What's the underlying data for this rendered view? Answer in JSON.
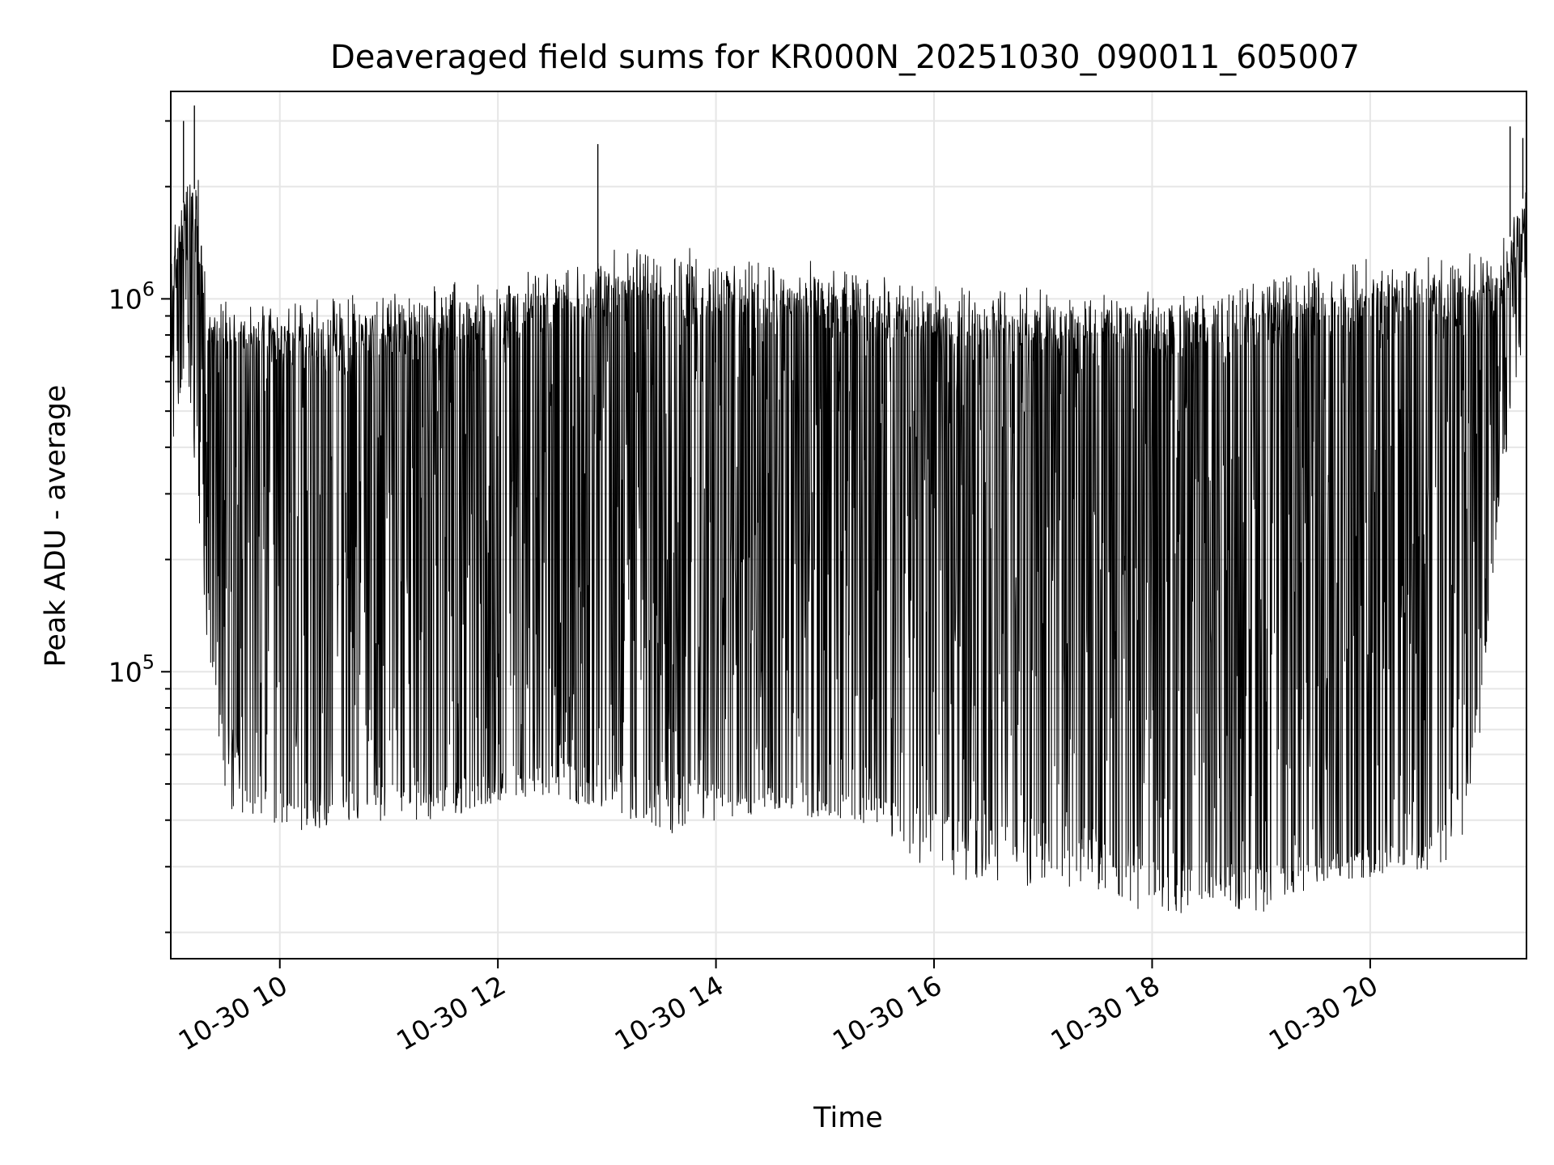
{
  "chart_data": {
    "type": "line",
    "title": "Deaveraged field sums for KR000N_20251030_090011_605007",
    "xlabel": "Time",
    "ylabel": "Peak ADU - average",
    "yscale": "log",
    "ylim": [
      17000,
      3600000
    ],
    "xlim": [
      "2025-10-30 09:00",
      "2025-10-30 21:26"
    ],
    "grid": true,
    "line_color": "#000000",
    "x_ticks": [
      {
        "value": "2025-10-30 10:00",
        "label": "10-30 10"
      },
      {
        "value": "2025-10-30 12:00",
        "label": "10-30 12"
      },
      {
        "value": "2025-10-30 14:00",
        "label": "10-30 14"
      },
      {
        "value": "2025-10-30 16:00",
        "label": "10-30 16"
      },
      {
        "value": "2025-10-30 18:00",
        "label": "10-30 18"
      },
      {
        "value": "2025-10-30 20:00",
        "label": "10-30 20"
      }
    ],
    "y_ticks": [
      {
        "value": 100000,
        "base": "10",
        "exp": "5"
      },
      {
        "value": 1000000,
        "base": "10",
        "exp": "6"
      }
    ],
    "envelope": {
      "time": [
        "2025-10-30 09:00",
        "2025-10-30 09:08",
        "2025-10-30 09:15",
        "2025-10-30 09:20",
        "2025-10-30 09:30",
        "2025-10-30 09:40",
        "2025-10-30 10:00",
        "2025-10-30 10:30",
        "2025-10-30 11:00",
        "2025-10-30 11:30",
        "2025-10-30 12:00",
        "2025-10-30 12:30",
        "2025-10-30 13:00",
        "2025-10-30 13:30",
        "2025-10-30 14:00",
        "2025-10-30 14:30",
        "2025-10-30 15:00",
        "2025-10-30 15:30",
        "2025-10-30 16:00",
        "2025-10-30 16:30",
        "2025-10-30 17:00",
        "2025-10-30 17:30",
        "2025-10-30 18:00",
        "2025-10-30 18:30",
        "2025-10-30 19:00",
        "2025-10-30 19:30",
        "2025-10-30 20:00",
        "2025-10-30 20:30",
        "2025-10-30 20:50",
        "2025-10-30 21:00",
        "2025-10-30 21:10",
        "2025-10-30 21:20",
        "2025-10-30 21:26"
      ],
      "upper": [
        1300000,
        1900000,
        2000000,
        1000000,
        950000,
        900000,
        880000,
        900000,
        950000,
        1000000,
        1050000,
        1100000,
        1200000,
        1250000,
        1200000,
        1150000,
        1100000,
        1050000,
        1000000,
        980000,
        960000,
        960000,
        960000,
        1000000,
        1050000,
        1100000,
        1150000,
        1180000,
        1180000,
        1220000,
        1200000,
        1600000,
        2000000
      ],
      "lower": [
        380000,
        700000,
        400000,
        160000,
        85000,
        55000,
        48000,
        46000,
        50000,
        50000,
        55000,
        60000,
        58000,
        52000,
        50000,
        50000,
        48000,
        46000,
        42000,
        42000,
        40000,
        38000,
        33000,
        31000,
        30000,
        33000,
        35000,
        34000,
        50000,
        90000,
        300000,
        700000,
        900000
      ],
      "floor": [
        380000,
        700000,
        280000,
        110000,
        45000,
        38000,
        37000,
        38000,
        40000,
        40000,
        45000,
        46000,
        42000,
        36000,
        40000,
        42000,
        40000,
        39000,
        28000,
        27000,
        26000,
        26000,
        22000,
        23000,
        22000,
        27000,
        28000,
        29000,
        32000,
        65000,
        250000,
        550000,
        850000
      ]
    },
    "spikes": [
      {
        "time": "2025-10-30 12:55",
        "value": 2600000
      },
      {
        "time": "2025-10-30 09:07",
        "value": 3000000
      },
      {
        "time": "2025-10-30 09:13",
        "value": 3300000
      },
      {
        "time": "2025-10-30 21:17",
        "value": 2900000
      },
      {
        "time": "2025-10-30 21:24",
        "value": 2700000
      }
    ]
  }
}
